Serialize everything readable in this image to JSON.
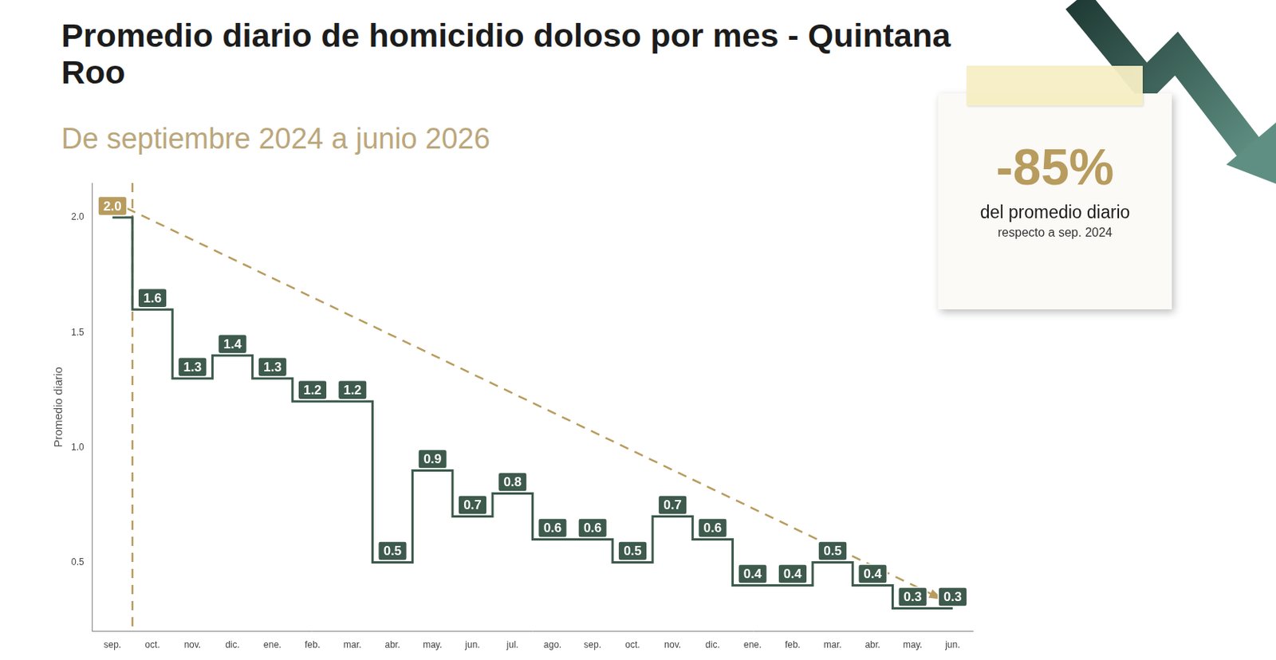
{
  "chart_data": {
    "type": "line",
    "title": "Promedio diario de homicidio doloso por mes - Quintana Roo",
    "subtitle": "De septiembre 2024 a junio 2026",
    "y_label": "Promedio diario",
    "categories": [
      "sep.",
      "oct.",
      "nov.",
      "dic.",
      "ene.",
      "feb.",
      "mar.",
      "abr.",
      "may.",
      "jun.",
      "jul.",
      "ago.",
      "sep.",
      "oct.",
      "nov.",
      "dic.",
      "ene.",
      "feb.",
      "mar.",
      "abr.",
      "may.",
      "jun."
    ],
    "values": [
      2.0,
      1.6,
      1.3,
      1.4,
      1.3,
      1.2,
      1.2,
      0.5,
      0.9,
      0.7,
      0.8,
      0.6,
      0.6,
      0.5,
      0.7,
      0.6,
      0.4,
      0.4,
      0.5,
      0.4,
      0.3,
      0.3
    ],
    "value_labels": [
      "2.0",
      "1.6",
      "1.3",
      "1.4",
      "1.3",
      "1.2",
      "1.2",
      "0.5",
      "0.9",
      "0.7",
      "0.8",
      "0.6",
      "0.6",
      "0.5",
      "0.7",
      "0.6",
      "0.4",
      "0.4",
      "0.5",
      "0.4",
      "0.3",
      "0.3"
    ],
    "color": "#3d5a4c",
    "colors": [
      "#b89c5e",
      "#3d5a4c",
      "#3d5a4c",
      "#3d5a4c",
      "#3d5a4c",
      "#3d5a4c",
      "#3d5a4c",
      "#3d5a4c",
      "#3d5a4c",
      "#3d5a4c",
      "#3d5a4c",
      "#3d5a4c",
      "#3d5a4c",
      "#3d5a4c",
      "#3d5a4c",
      "#3d5a4c",
      "#3d5a4c",
      "#3d5a4c",
      "#3d5a4c",
      "#3d5a4c",
      "#3d5a4c",
      "#3d5a4c"
    ],
    "line_style": "stepped",
    "data_labels": true,
    "grid": false,
    "ylim": [
      0.2,
      2.15
    ],
    "yticks": [
      0.5,
      {
        "value": 1.0,
        "label": "1.0"
      },
      1.5,
      {
        "value": 2.0,
        "label": "2.0"
      }
    ],
    "trend_line": {
      "start": 2.07,
      "end": 0.35,
      "color": "#b89c5e",
      "line_style": "dashed"
    },
    "annotation": {
      "value": "-85%",
      "text": "del promedio diario",
      "note": "respecto a sep. 2024"
    }
  }
}
